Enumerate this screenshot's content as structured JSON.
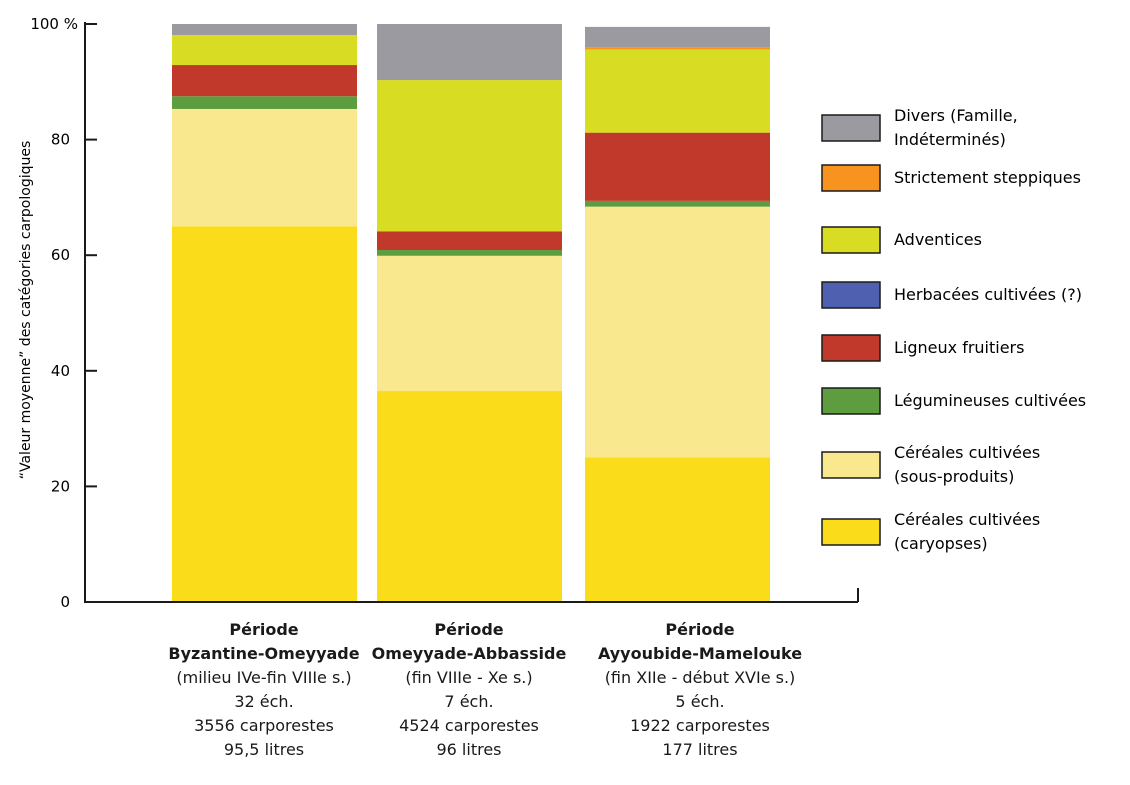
{
  "chart_data": {
    "type": "bar",
    "stacked": true,
    "ylabel": "“Valeur moyenne” des catégories carpologiques",
    "ylim": [
      0,
      100
    ],
    "y_ticks": [
      "0",
      "20",
      "40",
      "60",
      "80",
      "100 %"
    ],
    "categories": [
      {
        "lines": [
          "Période",
          "Byzantine-Omeyyade",
          "(milieu IVe-fin VIIIe s.)",
          "32 éch.",
          "3556 carporestes",
          "95,5 litres"
        ]
      },
      {
        "lines": [
          "Période",
          "Omeyyade-Abbasside",
          "(fin VIIIe - Xe s.)",
          "7 éch.",
          "4524 carporestes",
          "96 litres"
        ]
      },
      {
        "lines": [
          "Période",
          "Ayyoubide-Mamelouke",
          "(fin XIIe - début XVIe s.)",
          "5 éch.",
          "1922 carporestes",
          "177 litres"
        ]
      }
    ],
    "series": [
      {
        "name": "Céréales cultivées (caryopses)",
        "legend_lines": [
          "Céréales cultivées",
          "(caryopses)"
        ],
        "color": "#fbdc1b",
        "values": [
          65.0,
          36.5,
          25.0
        ]
      },
      {
        "name": "Céréales cultivées (sous-produits)",
        "legend_lines": [
          "Céréales cultivées",
          "(sous-produits)"
        ],
        "color": "#fae88f",
        "values": [
          20.3,
          23.4,
          43.4
        ]
      },
      {
        "name": "Légumineuses cultivées",
        "legend_lines": [
          "Légumineuses cultivées"
        ],
        "color": "#5e9c40",
        "values": [
          2.2,
          1.0,
          1.0
        ]
      },
      {
        "name": "Ligneux fruitiers",
        "legend_lines": [
          "Ligneux fruitiers"
        ],
        "color": "#c0392b",
        "values": [
          5.4,
          3.2,
          11.8
        ]
      },
      {
        "name": "Herbacées cultivées (?)",
        "legend_lines": [
          "Herbacées cultivées (?)"
        ],
        "color": "#5060b0",
        "values": [
          0.0,
          0.0,
          0.0
        ]
      },
      {
        "name": "Adventices",
        "legend_lines": [
          "Adventices"
        ],
        "color": "#d8dc22",
        "values": [
          5.2,
          26.2,
          14.4
        ]
      },
      {
        "name": "Strictement steppiques",
        "legend_lines": [
          "Strictement steppiques"
        ],
        "color": "#f7931e",
        "values": [
          0.0,
          0.0,
          0.4
        ]
      },
      {
        "name": "Divers (Famille, Indéterminés)",
        "legend_lines": [
          "Divers (Famille,",
          "Indéterminés)"
        ],
        "color": "#9b9aa0",
        "values": [
          1.9,
          9.7,
          3.5
        ]
      }
    ],
    "legend_position": "right",
    "grid": false
  }
}
